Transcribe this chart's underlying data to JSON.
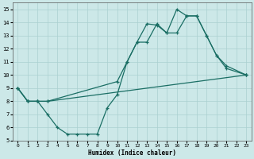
{
  "xlabel": "Humidex (Indice chaleur)",
  "background_color": "#cce8e8",
  "grid_color": "#aad0d0",
  "line_color": "#1a6e64",
  "xlim": [
    -0.5,
    23.5
  ],
  "ylim": [
    5,
    15.5
  ],
  "xticks": [
    0,
    1,
    2,
    3,
    4,
    5,
    6,
    7,
    8,
    9,
    10,
    11,
    12,
    13,
    14,
    15,
    16,
    17,
    18,
    19,
    20,
    21,
    22,
    23
  ],
  "yticks": [
    5,
    6,
    7,
    8,
    9,
    10,
    11,
    12,
    13,
    14,
    15
  ],
  "line1_x": [
    0,
    1,
    2,
    3,
    4,
    5,
    6,
    7,
    8,
    9,
    10,
    11,
    12,
    13,
    14,
    15,
    16,
    17,
    18,
    19,
    20,
    21,
    23
  ],
  "line1_y": [
    9,
    8,
    8,
    7,
    6,
    5.5,
    5.5,
    5.5,
    5.5,
    7.5,
    8.5,
    11,
    12.5,
    13.9,
    13.8,
    13.2,
    15,
    14.5,
    14.5,
    13,
    11.5,
    10.5,
    10
  ],
  "line2_x": [
    0,
    1,
    2,
    3,
    10,
    11,
    12,
    13,
    14,
    15,
    16,
    17,
    18,
    19,
    20,
    21,
    23
  ],
  "line2_y": [
    9,
    8,
    8,
    8,
    9.5,
    11,
    12.5,
    12.5,
    13.9,
    13.2,
    13.2,
    14.5,
    14.5,
    13,
    11.5,
    10.7,
    10
  ],
  "line3_x": [
    0,
    1,
    2,
    3,
    23
  ],
  "line3_y": [
    9,
    8,
    8,
    8,
    10
  ]
}
